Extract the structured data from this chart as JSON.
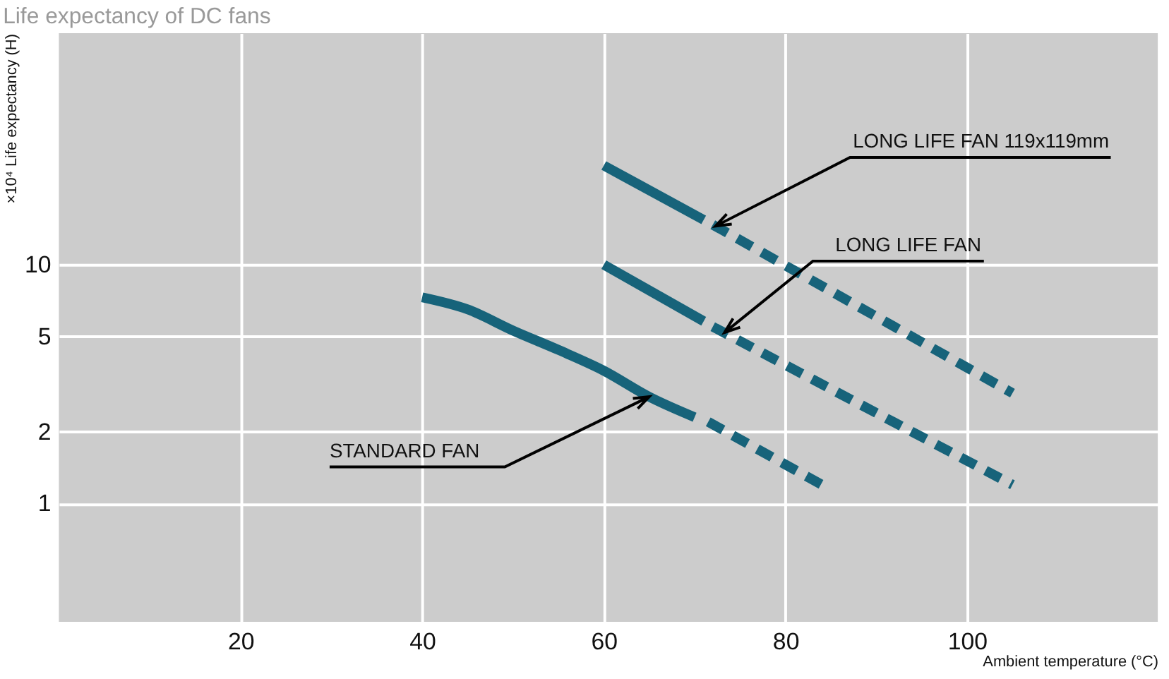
{
  "chart_data": {
    "type": "line",
    "title": "Life expectancy of DC fans",
    "xlabel": "Ambient temperature (°C)",
    "ylabel": "×10⁴ Life expectancy (H)",
    "xlim": [
      0,
      121
    ],
    "xticks": [
      20,
      40,
      60,
      80,
      100
    ],
    "ylim": [
      0.32,
      93
    ],
    "yticks": [
      1,
      2,
      5,
      10
    ],
    "log": "y",
    "grid": true,
    "series": [
      {
        "color": "#17637a",
        "line_style": "solid",
        "x": [
          40,
          45,
          50,
          55,
          60,
          65,
          70
        ],
        "values": [
          7.3,
          6.5,
          5.3,
          4.4,
          3.6,
          2.8,
          2.3
        ]
      },
      {
        "color": "#17637a",
        "line_style": "dashed",
        "x": [
          71.5,
          84
        ],
        "values": [
          2.2,
          1.2
        ]
      },
      {
        "color": "#17637a",
        "line_style": "solid",
        "x": [
          60,
          71
        ],
        "values": [
          10,
          5.8
        ]
      },
      {
        "color": "#17637a",
        "line_style": "dashed",
        "x": [
          72,
          105
        ],
        "values": [
          5.5,
          1.2
        ]
      },
      {
        "color": "#17637a",
        "line_style": "solid",
        "x": [
          60,
          71
        ],
        "values": [
          26,
          15.4
        ]
      },
      {
        "color": "#17637a",
        "line_style": "dashed",
        "x": [
          72,
          105
        ],
        "values": [
          14.7,
          2.9
        ]
      }
    ],
    "annotations": [
      {
        "text": "LONG LIFE FAN 119x119mm",
        "x": 72.3,
        "y": 14.5
      },
      {
        "text": "LONG LIFE FAN",
        "x": 73.3,
        "y": 5.2
      },
      {
        "text": "STANDARD FAN",
        "x": 65,
        "y": 2.8
      }
    ]
  }
}
